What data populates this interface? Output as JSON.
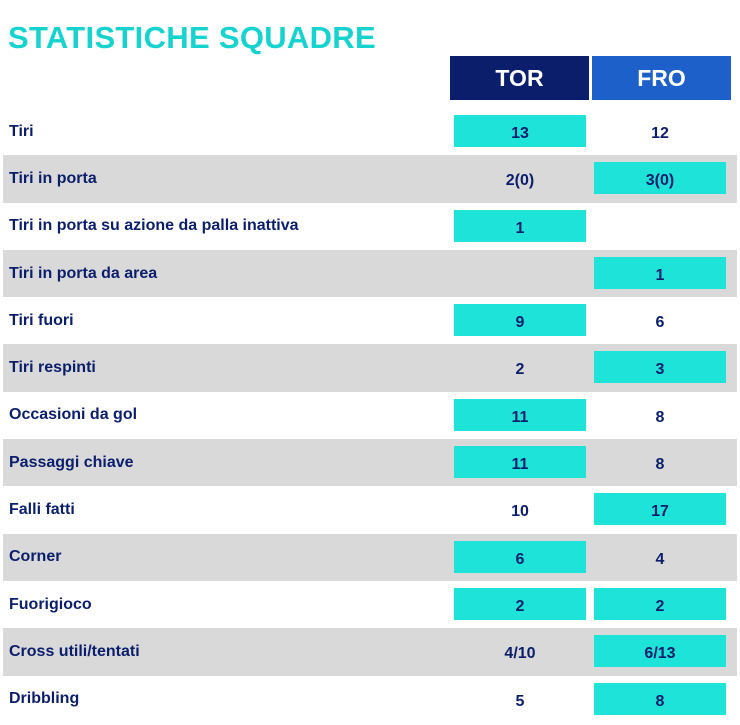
{
  "title": "STATISTICHE SQUADRE",
  "teams": {
    "home": "TOR",
    "away": "FRO"
  },
  "colors": {
    "title": "#17d3cf",
    "home_header": "#0b1e6b",
    "away_header": "#1e60c9",
    "highlight": "#1ee3d9",
    "text": "#0b1e6b",
    "row_alt": "#d9d9d9"
  },
  "rows": [
    {
      "label": "Tiri",
      "home": "13",
      "away": "12",
      "highlight": "home"
    },
    {
      "label": "Tiri in porta",
      "home": "2(0)",
      "away": "3(0)",
      "highlight": "away"
    },
    {
      "label": "Tiri in porta su azione da palla inattiva",
      "home": "1",
      "away": "",
      "highlight": "home"
    },
    {
      "label": "Tiri in porta da area",
      "home": "",
      "away": "1",
      "highlight": "away"
    },
    {
      "label": "Tiri fuori",
      "home": "9",
      "away": "6",
      "highlight": "home"
    },
    {
      "label": "Tiri respinti",
      "home": "2",
      "away": "3",
      "highlight": "away"
    },
    {
      "label": "Occasioni da gol",
      "home": "11",
      "away": "8",
      "highlight": "home"
    },
    {
      "label": "Passaggi chiave",
      "home": "11",
      "away": "8",
      "highlight": "home"
    },
    {
      "label": "Falli fatti",
      "home": "10",
      "away": "17",
      "highlight": "away"
    },
    {
      "label": "Corner",
      "home": "6",
      "away": "4",
      "highlight": "home"
    },
    {
      "label": "Fuorigioco",
      "home": "2",
      "away": "2",
      "highlight": "both"
    },
    {
      "label": "Cross utili/tentati",
      "home": "4/10",
      "away": "6/13",
      "highlight": "away"
    },
    {
      "label": "Dribbling",
      "home": "5",
      "away": "8",
      "highlight": "away"
    }
  ]
}
